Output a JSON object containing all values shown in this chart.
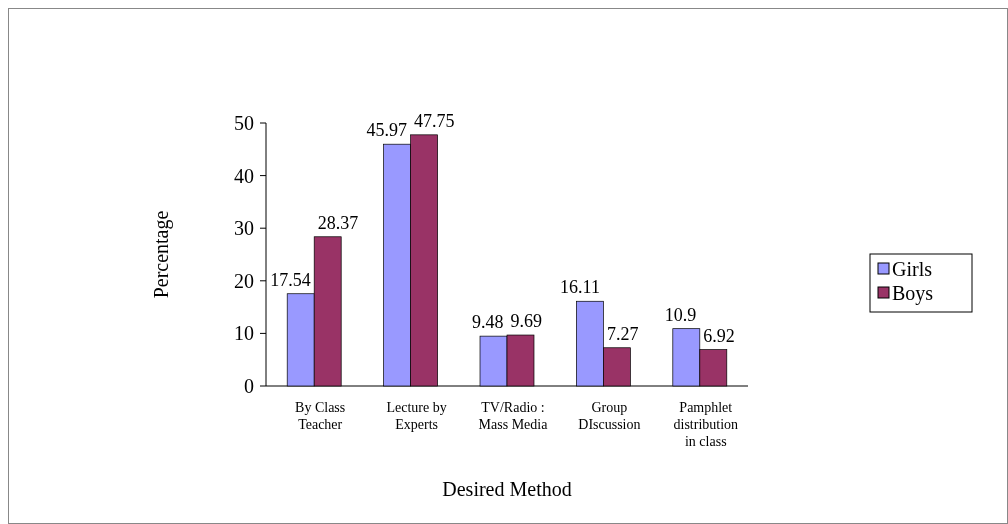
{
  "chart_data": {
    "type": "bar",
    "xlabel": "Desired Method",
    "ylabel": "Percentage",
    "categories": [
      "By Class Teacher",
      "Lecture by Experts",
      "TV/Radio : Mass Media",
      "Group DIscussion",
      "Pamphlet distribution in class"
    ],
    "series": [
      {
        "name": "Girls",
        "color": "#9999ff",
        "values": [
          17.54,
          45.97,
          9.48,
          16.11,
          10.9
        ]
      },
      {
        "name": "Boys",
        "color": "#993366",
        "values": [
          28.37,
          47.75,
          9.69,
          7.27,
          6.92
        ]
      }
    ],
    "ylim": [
      0,
      50
    ],
    "yticks": [
      0,
      10,
      20,
      30,
      40,
      50
    ],
    "data_labels": true,
    "legend": "right",
    "grid": false
  }
}
